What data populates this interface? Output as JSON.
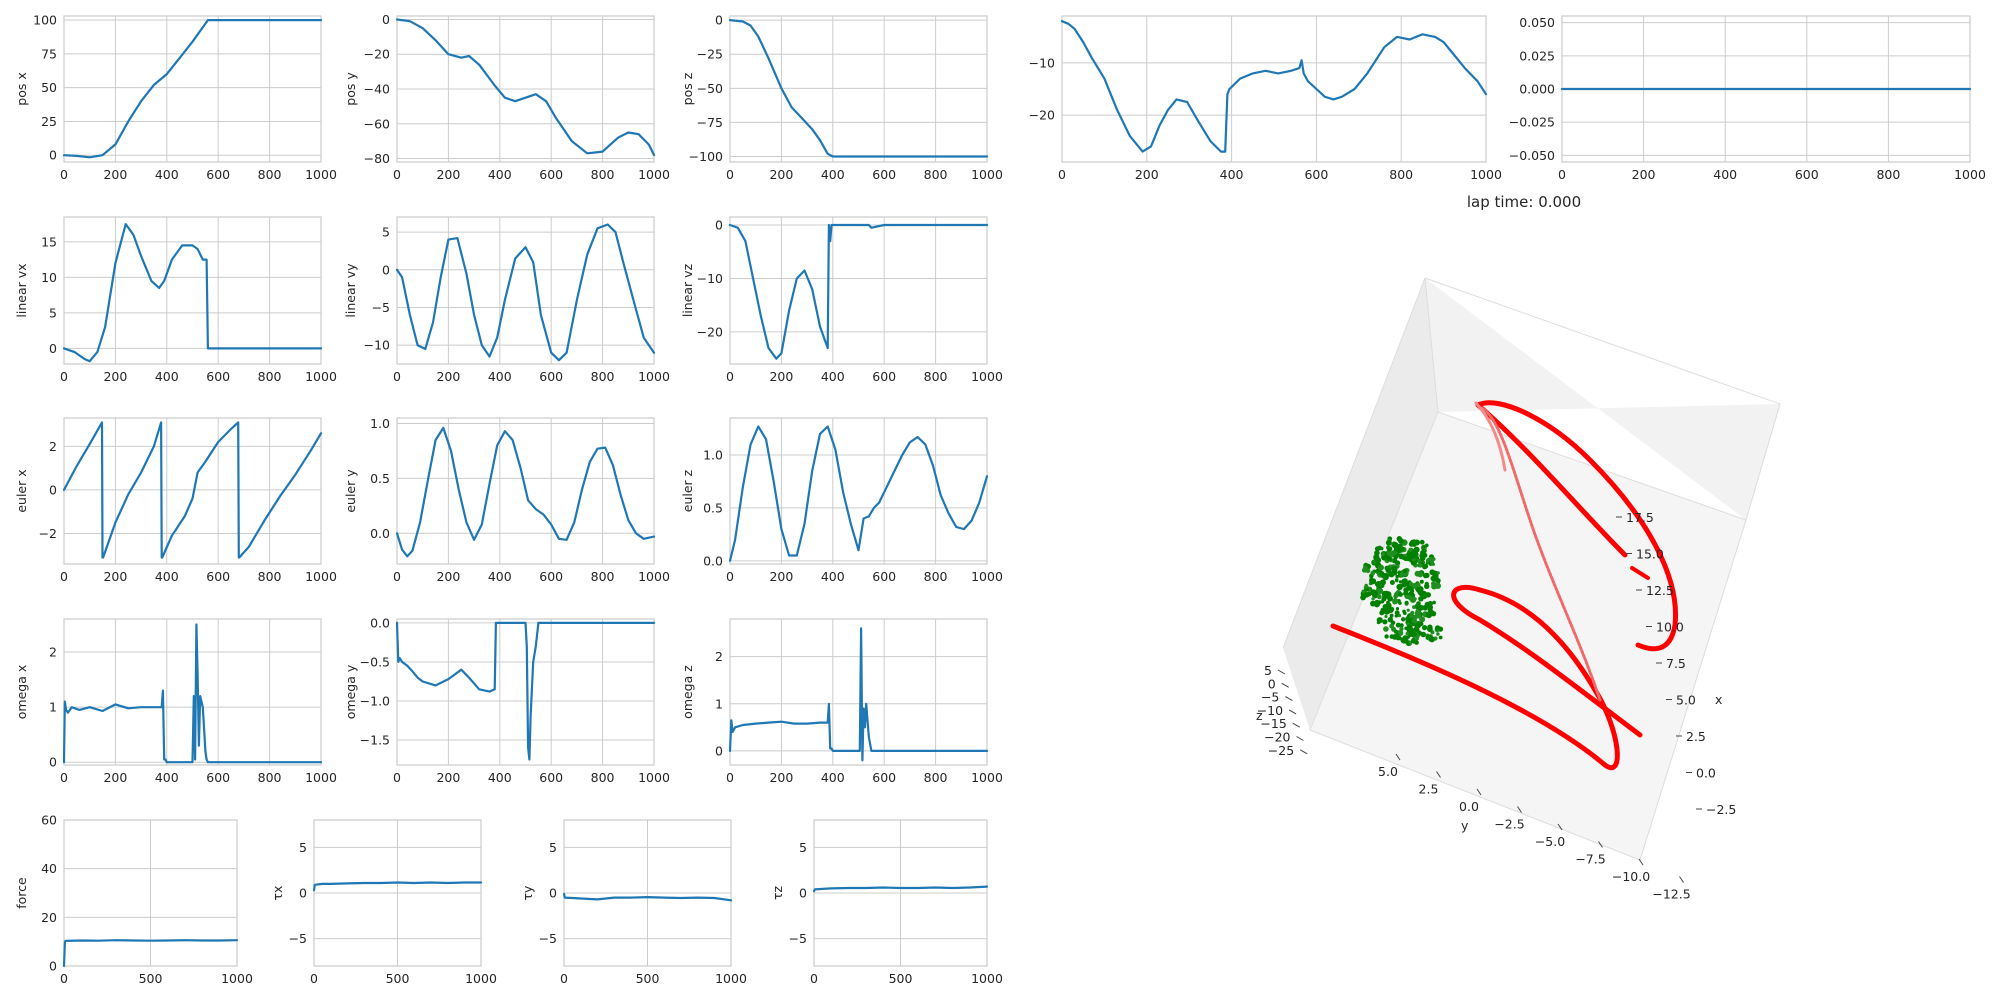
{
  "title": "lap time: 0.000",
  "colors": {
    "series": "#1f77b4",
    "trajectory": "#ff0000",
    "gates": "#008000"
  },
  "chart_data": [
    {
      "id": "posx",
      "type": "line",
      "ylabel": "pos x",
      "xlim": [
        0,
        1000
      ],
      "ylim": [
        -5,
        103
      ],
      "xticks": [
        0,
        200,
        400,
        600,
        800,
        1000
      ],
      "yticks": [
        0,
        25,
        50,
        75,
        100
      ],
      "x": [
        0,
        50,
        100,
        150,
        200,
        250,
        300,
        350,
        400,
        450,
        500,
        560,
        600,
        700,
        800,
        900,
        1000
      ],
      "y": [
        0,
        -0.5,
        -1.5,
        0,
        8,
        25,
        40,
        52,
        60,
        72,
        84,
        100,
        100,
        100,
        100,
        100,
        100
      ]
    },
    {
      "id": "posy",
      "type": "line",
      "ylabel": "pos y",
      "xlim": [
        0,
        1000
      ],
      "ylim": [
        -82,
        2
      ],
      "xticks": [
        0,
        200,
        400,
        600,
        800,
        1000
      ],
      "yticks": [
        0,
        -20,
        -40,
        -60,
        -80
      ],
      "x": [
        0,
        50,
        100,
        150,
        200,
        250,
        280,
        320,
        380,
        420,
        460,
        500,
        540,
        580,
        620,
        680,
        740,
        800,
        860,
        900,
        940,
        980,
        1000
      ],
      "y": [
        0,
        -1,
        -5,
        -12,
        -20,
        -22,
        -21,
        -26,
        -38,
        -45,
        -47,
        -45,
        -43,
        -47,
        -57,
        -70,
        -77,
        -76,
        -68,
        -65,
        -66,
        -72,
        -78
      ]
    },
    {
      "id": "posz",
      "type": "line",
      "ylabel": "pos z",
      "xlim": [
        0,
        1000
      ],
      "ylim": [
        -104,
        3
      ],
      "xticks": [
        0,
        200,
        400,
        600,
        800,
        1000
      ],
      "yticks": [
        0,
        -25,
        -50,
        -75,
        -100
      ],
      "x": [
        0,
        50,
        80,
        110,
        150,
        200,
        240,
        280,
        320,
        350,
        380,
        400,
        500,
        600,
        700,
        800,
        1000
      ],
      "y": [
        0,
        -1,
        -4,
        -12,
        -28,
        -50,
        -64,
        -72,
        -80,
        -88,
        -98,
        -100,
        -100,
        -100,
        -100,
        -100,
        -100
      ]
    },
    {
      "id": "p4",
      "type": "line",
      "ylabel": "",
      "xlim": [
        0,
        1000
      ],
      "ylim": [
        -29,
        -1
      ],
      "xticks": [
        0,
        200,
        400,
        600,
        800,
        1000
      ],
      "yticks": [
        -10,
        -20
      ],
      "x": [
        0,
        15,
        30,
        50,
        70,
        100,
        130,
        160,
        190,
        210,
        230,
        250,
        270,
        295,
        320,
        350,
        375,
        385,
        390,
        395,
        420,
        450,
        480,
        510,
        540,
        560,
        565,
        570,
        580,
        600,
        620,
        640,
        660,
        690,
        720,
        760,
        790,
        820,
        850,
        880,
        900,
        920,
        950,
        980,
        1000
      ],
      "y": [
        -2,
        -2.5,
        -3.5,
        -6,
        -9,
        -13,
        -19,
        -24,
        -27,
        -26,
        -22,
        -19,
        -17,
        -17.5,
        -21,
        -25,
        -27,
        -27,
        -16,
        -15,
        -13,
        -12,
        -11.5,
        -12,
        -11.5,
        -11,
        -9.5,
        -12,
        -13.5,
        -15,
        -16.5,
        -17,
        -16.5,
        -15,
        -12,
        -7,
        -5,
        -5.5,
        -4.5,
        -5,
        -6,
        -8,
        -11,
        -13.5,
        -16
      ]
    },
    {
      "id": "p5",
      "type": "line",
      "ylabel": "",
      "xlim": [
        0,
        1000
      ],
      "ylim": [
        -0.055,
        0.055
      ],
      "xticks": [
        0,
        200,
        400,
        600,
        800,
        1000
      ],
      "yticks": [
        0.05,
        0.025,
        0.0,
        -0.025,
        -0.05
      ],
      "ytickfmt": 3,
      "x": [
        0,
        1000
      ],
      "y": [
        0,
        0
      ]
    },
    {
      "id": "vx",
      "type": "line",
      "ylabel": "linear vx",
      "xlim": [
        0,
        1000
      ],
      "ylim": [
        -2.2,
        18.5
      ],
      "xticks": [
        0,
        200,
        400,
        600,
        800,
        1000
      ],
      "yticks": [
        0,
        5,
        10,
        15
      ],
      "x": [
        0,
        40,
        80,
        100,
        130,
        160,
        200,
        240,
        270,
        300,
        340,
        370,
        390,
        420,
        460,
        500,
        520,
        540,
        555,
        560,
        565,
        600,
        800,
        1000
      ],
      "y": [
        0,
        -0.5,
        -1.5,
        -1.8,
        -0.5,
        3,
        12,
        17.5,
        16,
        13,
        9.5,
        8.5,
        9.5,
        12.5,
        14.5,
        14.5,
        14,
        12.5,
        12.5,
        0,
        0,
        0,
        0,
        0
      ]
    },
    {
      "id": "vy",
      "type": "line",
      "ylabel": "linear vy",
      "xlim": [
        0,
        1000
      ],
      "ylim": [
        -12.5,
        7
      ],
      "xticks": [
        0,
        200,
        400,
        600,
        800,
        1000
      ],
      "yticks": [
        5,
        0,
        -5,
        -10
      ],
      "x": [
        0,
        20,
        50,
        80,
        110,
        140,
        170,
        200,
        235,
        270,
        300,
        330,
        360,
        390,
        420,
        460,
        500,
        530,
        560,
        600,
        630,
        660,
        700,
        740,
        780,
        820,
        850,
        880,
        920,
        960,
        1000
      ],
      "y": [
        0,
        -1,
        -6,
        -10,
        -10.5,
        -7,
        -1,
        4,
        4.2,
        -0.5,
        -6,
        -10,
        -11.5,
        -9,
        -4,
        1.5,
        3,
        1,
        -6,
        -11,
        -12,
        -11,
        -4,
        2,
        5.5,
        6,
        5,
        1,
        -4,
        -9,
        -11
      ]
    },
    {
      "id": "vz",
      "type": "line",
      "ylabel": "linear vz",
      "xlim": [
        0,
        1000
      ],
      "ylim": [
        -26,
        1.5
      ],
      "xticks": [
        0,
        200,
        400,
        600,
        800,
        1000
      ],
      "yticks": [
        0,
        -10,
        -20
      ],
      "x": [
        0,
        30,
        60,
        90,
        120,
        150,
        180,
        200,
        230,
        260,
        290,
        320,
        350,
        380,
        385,
        390,
        395,
        400,
        500,
        540,
        550,
        600,
        800,
        1000
      ],
      "y": [
        0,
        -0.5,
        -3,
        -10,
        -17,
        -23,
        -25,
        -24,
        -16,
        -10,
        -8.5,
        -12,
        -19,
        -23,
        0,
        -3,
        0,
        0,
        0,
        0,
        -0.5,
        0,
        0,
        0
      ]
    },
    {
      "id": "ex",
      "type": "line",
      "ylabel": "euler x",
      "xlim": [
        0,
        1000
      ],
      "ylim": [
        -3.4,
        3.3
      ],
      "xticks": [
        0,
        200,
        400,
        600,
        800,
        1000
      ],
      "yticks": [
        2,
        0,
        -2
      ],
      "x": [
        0,
        50,
        100,
        148,
        150,
        152,
        200,
        250,
        300,
        350,
        378,
        380,
        382,
        420,
        470,
        500,
        520,
        550,
        600,
        650,
        678,
        680,
        682,
        720,
        780,
        840,
        900,
        960,
        1000
      ],
      "y": [
        0,
        1.1,
        2.1,
        3.1,
        -3.1,
        -3.1,
        -1.5,
        -0.2,
        0.8,
        2,
        3.1,
        -3.1,
        -3.1,
        -2.1,
        -1.2,
        -0.4,
        0.8,
        1.3,
        2.2,
        2.8,
        3.1,
        -3.1,
        -3.1,
        -2.6,
        -1.4,
        -0.3,
        0.7,
        1.8,
        2.6
      ]
    },
    {
      "id": "ey",
      "type": "line",
      "ylabel": "euler y",
      "xlim": [
        0,
        1000
      ],
      "ylim": [
        -0.28,
        1.05
      ],
      "xticks": [
        0,
        200,
        400,
        600,
        800,
        1000
      ],
      "yticks": [
        0.0,
        0.5,
        1.0
      ],
      "ytickfmt": 1,
      "x": [
        0,
        20,
        40,
        60,
        90,
        120,
        150,
        180,
        210,
        240,
        270,
        300,
        330,
        360,
        390,
        420,
        450,
        480,
        510,
        540,
        570,
        600,
        630,
        660,
        690,
        720,
        750,
        780,
        810,
        840,
        870,
        900,
        930,
        960,
        1000
      ],
      "y": [
        0,
        -0.15,
        -0.21,
        -0.16,
        0.1,
        0.48,
        0.85,
        0.96,
        0.75,
        0.4,
        0.1,
        -0.06,
        0.08,
        0.45,
        0.8,
        0.93,
        0.85,
        0.6,
        0.3,
        0.22,
        0.17,
        0.08,
        -0.05,
        -0.06,
        0.1,
        0.4,
        0.65,
        0.77,
        0.78,
        0.62,
        0.35,
        0.12,
        0,
        -0.05,
        -0.03
      ]
    },
    {
      "id": "ez",
      "type": "line",
      "ylabel": "euler z",
      "xlim": [
        0,
        1000
      ],
      "ylim": [
        -0.03,
        1.35
      ],
      "xticks": [
        0,
        200,
        400,
        600,
        800,
        1000
      ],
      "yticks": [
        0.0,
        0.5,
        1.0
      ],
      "ytickfmt": 1,
      "x": [
        0,
        20,
        50,
        80,
        110,
        140,
        170,
        200,
        230,
        260,
        290,
        320,
        350,
        380,
        410,
        440,
        470,
        500,
        520,
        540,
        560,
        580,
        610,
        640,
        670,
        700,
        730,
        760,
        790,
        820,
        850,
        880,
        910,
        940,
        970,
        1000
      ],
      "y": [
        0,
        0.2,
        0.7,
        1.1,
        1.27,
        1.15,
        0.75,
        0.3,
        0.05,
        0.05,
        0.35,
        0.85,
        1.2,
        1.27,
        1.05,
        0.65,
        0.35,
        0.1,
        0.4,
        0.42,
        0.5,
        0.55,
        0.7,
        0.85,
        1.0,
        1.12,
        1.17,
        1.1,
        0.9,
        0.62,
        0.45,
        0.32,
        0.3,
        0.38,
        0.55,
        0.8
      ]
    },
    {
      "id": "ox",
      "type": "line",
      "ylabel": "omega x",
      "xlim": [
        0,
        1000
      ],
      "ylim": [
        -0.05,
        2.6
      ],
      "xticks": [
        0,
        200,
        400,
        600,
        800,
        1000
      ],
      "yticks": [
        0,
        1,
        2
      ],
      "x": [
        0,
        3,
        8,
        15,
        30,
        60,
        100,
        150,
        200,
        250,
        300,
        350,
        380,
        385,
        390,
        395,
        400,
        480,
        500,
        505,
        510,
        515,
        520,
        525,
        530,
        540,
        550,
        555,
        560,
        600,
        800,
        1000
      ],
      "y": [
        0,
        1.1,
        0.95,
        0.9,
        1,
        0.95,
        1,
        0.93,
        1.05,
        0.98,
        1,
        1,
        1,
        1.3,
        0.05,
        0.05,
        0,
        0,
        0,
        1.2,
        0.05,
        2.5,
        1.6,
        0.3,
        1.2,
        1,
        0.2,
        0.05,
        0,
        0,
        0,
        0
      ]
    },
    {
      "id": "oy",
      "type": "line",
      "ylabel": "omega y",
      "xlim": [
        0,
        1000
      ],
      "ylim": [
        -1.82,
        0.05
      ],
      "xticks": [
        0,
        200,
        400,
        600,
        800,
        1000
      ],
      "yticks": [
        0.0,
        -0.5,
        -1.0,
        -1.5
      ],
      "ytickfmt": 1,
      "x": [
        0,
        5,
        10,
        20,
        40,
        60,
        80,
        100,
        150,
        200,
        250,
        280,
        320,
        360,
        380,
        385,
        390,
        395,
        400,
        480,
        500,
        505,
        510,
        515,
        520,
        530,
        540,
        550,
        560,
        600,
        800,
        1000
      ],
      "y": [
        0,
        -0.5,
        -0.45,
        -0.5,
        -0.55,
        -0.62,
        -0.7,
        -0.75,
        -0.8,
        -0.72,
        -0.6,
        -0.7,
        -0.85,
        -0.88,
        -0.85,
        0,
        0,
        0,
        0,
        0,
        0,
        -0.3,
        -1.6,
        -1.75,
        -1.2,
        -0.5,
        -0.3,
        0,
        0,
        0,
        0,
        0
      ]
    },
    {
      "id": "oz",
      "type": "line",
      "ylabel": "omega z",
      "xlim": [
        0,
        1000
      ],
      "ylim": [
        -0.3,
        2.8
      ],
      "xticks": [
        0,
        200,
        400,
        600,
        800,
        1000
      ],
      "yticks": [
        0,
        1,
        2
      ],
      "x": [
        0,
        5,
        10,
        20,
        50,
        100,
        150,
        200,
        250,
        300,
        350,
        380,
        385,
        390,
        395,
        400,
        480,
        500,
        505,
        510,
        515,
        520,
        525,
        530,
        540,
        550,
        560,
        600,
        800,
        1000
      ],
      "y": [
        0,
        0.65,
        0.4,
        0.5,
        0.55,
        0.58,
        0.6,
        0.62,
        0.58,
        0.58,
        0.6,
        0.6,
        1,
        0.05,
        0.05,
        0,
        0,
        0,
        0,
        2.6,
        -0.2,
        0.9,
        0.5,
        1,
        0.3,
        0,
        0,
        0,
        0,
        0
      ]
    },
    {
      "id": "force",
      "type": "line",
      "ylabel": "force",
      "xlim": [
        0,
        1000
      ],
      "ylim": [
        0,
        60
      ],
      "xticks": [
        0,
        500,
        1000
      ],
      "yticks": [
        0,
        20,
        40,
        60
      ],
      "x": [
        0,
        5,
        10,
        100,
        200,
        300,
        400,
        500,
        600,
        700,
        800,
        900,
        1000
      ],
      "y": [
        0,
        10,
        10.3,
        10.5,
        10.4,
        10.6,
        10.5,
        10.4,
        10.5,
        10.6,
        10.5,
        10.5,
        10.6
      ]
    },
    {
      "id": "tx",
      "type": "line",
      "ylabel": "τx",
      "xlim": [
        0,
        1000
      ],
      "ylim": [
        -8,
        8
      ],
      "xticks": [
        0,
        500,
        1000
      ],
      "yticks": [
        5,
        0,
        -5
      ],
      "x": [
        0,
        5,
        50,
        100,
        200,
        300,
        400,
        500,
        600,
        700,
        800,
        900,
        1000
      ],
      "y": [
        0.3,
        0.9,
        1,
        1,
        1.05,
        1.1,
        1.1,
        1.15,
        1.1,
        1.15,
        1.1,
        1.15,
        1.15
      ]
    },
    {
      "id": "ty",
      "type": "line",
      "ylabel": "τy",
      "xlim": [
        0,
        1000
      ],
      "ylim": [
        -8,
        8
      ],
      "xticks": [
        0,
        500,
        1000
      ],
      "yticks": [
        5,
        0,
        -5
      ],
      "x": [
        0,
        5,
        50,
        100,
        200,
        300,
        400,
        500,
        600,
        700,
        800,
        900,
        1000
      ],
      "y": [
        -0.1,
        -0.5,
        -0.55,
        -0.6,
        -0.7,
        -0.5,
        -0.5,
        -0.45,
        -0.5,
        -0.55,
        -0.5,
        -0.55,
        -0.8
      ]
    },
    {
      "id": "tz",
      "type": "line",
      "ylabel": "τz",
      "xlim": [
        0,
        1000
      ],
      "ylim": [
        -8,
        8
      ],
      "xticks": [
        0,
        500,
        1000
      ],
      "yticks": [
        5,
        0,
        -5
      ],
      "x": [
        0,
        5,
        50,
        100,
        200,
        300,
        400,
        500,
        600,
        700,
        800,
        900,
        1000
      ],
      "y": [
        0.2,
        0.4,
        0.45,
        0.5,
        0.55,
        0.55,
        0.6,
        0.55,
        0.55,
        0.6,
        0.55,
        0.6,
        0.7
      ]
    }
  ],
  "plot3d": {
    "type": "scatter3d",
    "xlabel": "x",
    "ylabel": "y",
    "zlabel": "z",
    "xticks": [
      "−2.5",
      "0.0",
      "2.5",
      "5.0",
      "7.5",
      "10.0",
      "12.5",
      "15.0",
      "17.5"
    ],
    "yticks": [
      "5.0",
      "2.5",
      "0.0",
      "−2.5",
      "−5.0",
      "−7.5",
      "−10.0",
      "−12.5"
    ],
    "zticks": [
      "5",
      "0",
      "−5",
      "−10",
      "−15",
      "−20",
      "−25"
    ]
  }
}
